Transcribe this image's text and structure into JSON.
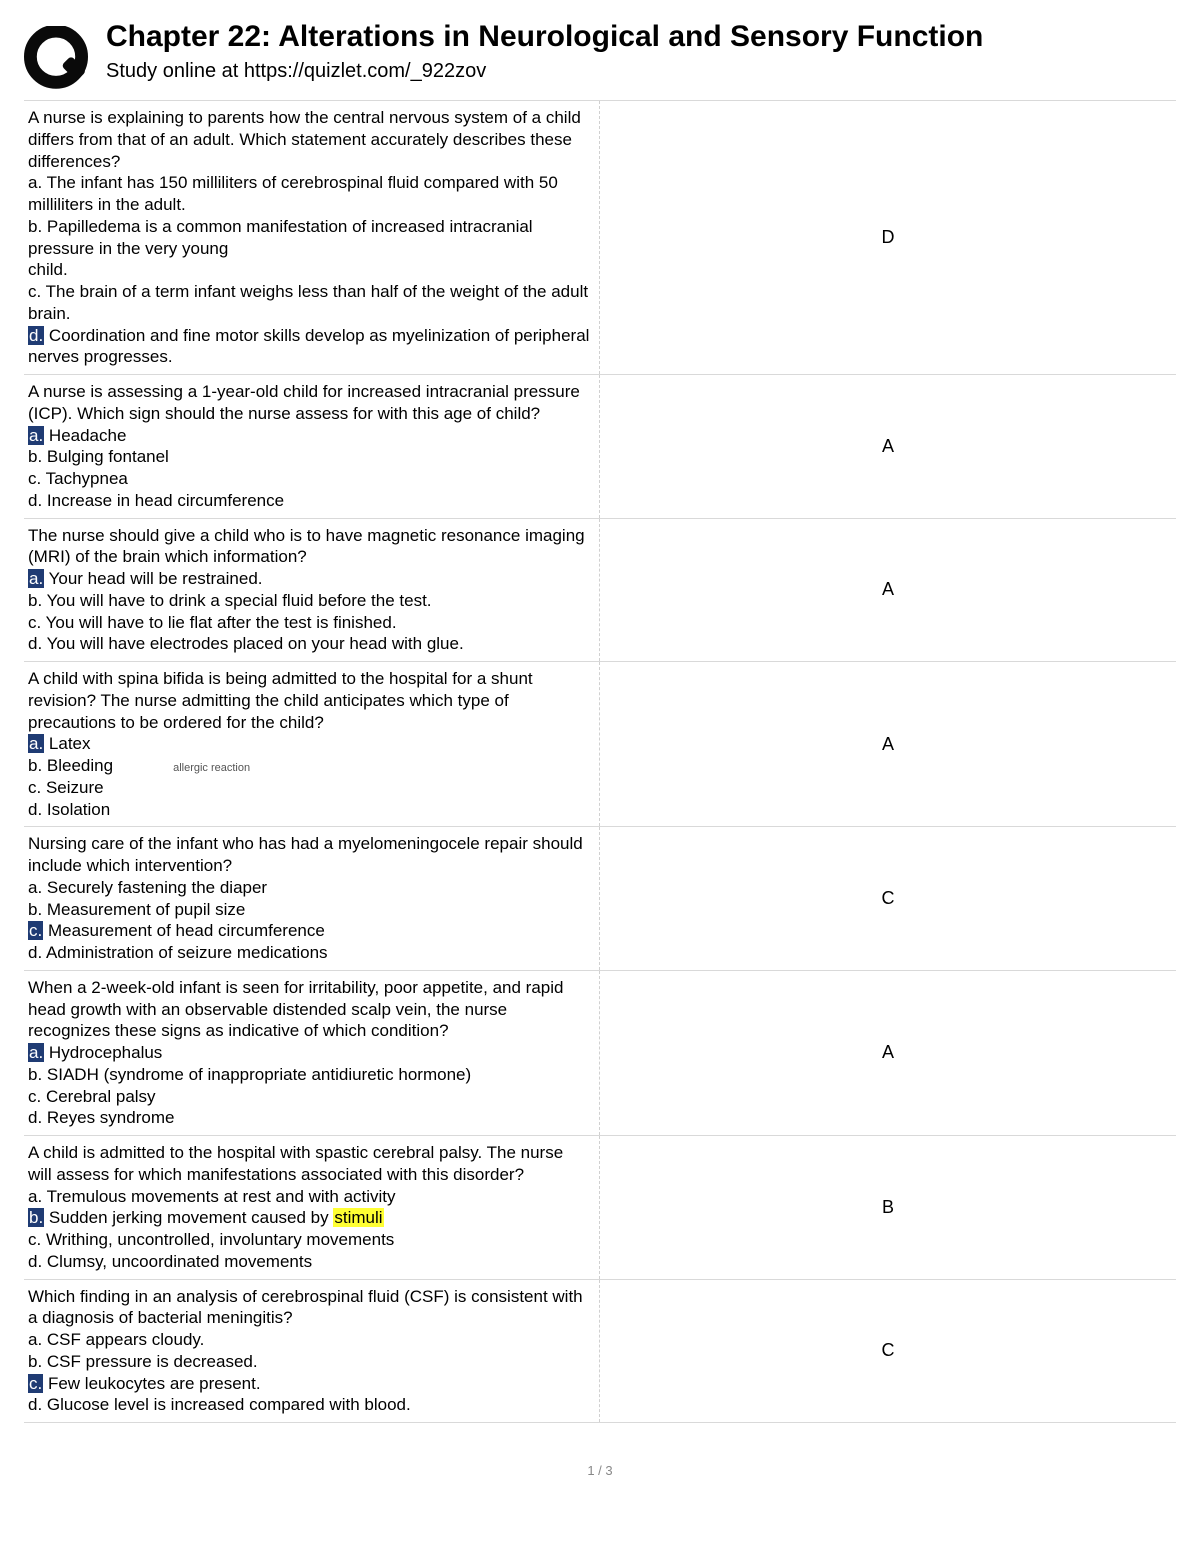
{
  "header": {
    "title": "Chapter 22: Alterations in Neurological and Sensory Function",
    "subtitle": "Study online at https://quizlet.com/_922zov"
  },
  "colors": {
    "highlight_blue_bg": "#1f3b73",
    "highlight_blue_fg": "#ffffff",
    "highlight_yellow_bg": "#ffff33",
    "row_border": "#d9d9d9",
    "column_divider": "#d0d0d0"
  },
  "rows": [
    {
      "answer": "D",
      "question": [
        {
          "t": "A nurse is explaining to parents how the central nervous system of a child differs from that of an adult. Which statement accurately describes these differences?"
        },
        {
          "t": "a. The infant has 150 milliliters of cerebrospinal fluid compared with 50 milliliters in the adult."
        },
        {
          "t": "b. Papilledema is a common manifestation of increased intracranial pressure in the very young"
        },
        {
          "t": "child."
        },
        {
          "t": "c. The brain of a term infant weighs less than half of the weight of the adult brain."
        },
        {
          "pre": "",
          "hl": "d.",
          "hlc": "blue",
          "post": " Coordination and fine motor skills develop as myelinization of peripheral nerves progresses."
        }
      ]
    },
    {
      "answer": "A",
      "question": [
        {
          "t": "A nurse is assessing a 1-year-old child for increased intracranial pressure (ICP). Which sign should the nurse assess for with this age of child?"
        },
        {
          "pre": "",
          "hl": "a.",
          "hlc": "blue",
          "post": " Headache"
        },
        {
          "t": "b. Bulging fontanel"
        },
        {
          "t": "c. Tachypnea"
        },
        {
          "t": "d. Increase in head circumference"
        }
      ]
    },
    {
      "answer": "A",
      "question": [
        {
          "t": "The nurse should give a child who is to have magnetic resonance imaging (MRI) of the brain which information?"
        },
        {
          "pre": "",
          "hl": "a.",
          "hlc": "blue",
          "post": " Your head will be restrained."
        },
        {
          "t": "b. You will have to drink a special fluid before the test."
        },
        {
          "t": "c. You will have to lie flat after the test is finished."
        },
        {
          "t": "d. You will have electrodes placed on your head with glue."
        }
      ]
    },
    {
      "answer": "A",
      "question": [
        {
          "t": " A child with spina bifida is being admitted to the hospital for a shunt revision? The nurse admitting the child anticipates which type of precautions to be ordered for the child?"
        },
        {
          "pre": " ",
          "hl": "a.",
          "hlc": "blue",
          "post": " Latex"
        },
        {
          "t": " b. Bleeding",
          "annot": "allergic reaction"
        },
        {
          "t": " c. Seizure"
        },
        {
          "t": " d. Isolation"
        }
      ]
    },
    {
      "answer": "C",
      "question": [
        {
          "t": "Nursing care of the infant who has had a myelomeningocele repair should include which intervention?"
        },
        {
          "t": "a. Securely fastening the diaper"
        },
        {
          "t": "b. Measurement of pupil size"
        },
        {
          "pre": "",
          "hl": "c.",
          "hlc": "blue",
          "post": " Measurement of head circumference"
        },
        {
          "t": "d. Administration of seizure medications"
        }
      ]
    },
    {
      "answer": "A",
      "question": [
        {
          "t": "When a 2-week-old infant is seen for irritability, poor appetite, and rapid head growth with an observable distended scalp vein, the nurse recognizes these signs as indicative of which condition?"
        },
        {
          "pre": "",
          "hl": "a.",
          "hlc": "blue",
          "post": " Hydrocephalus"
        },
        {
          "t": "b. SIADH (syndrome of inappropriate antidiuretic hormone)"
        },
        {
          "t": "c. Cerebral palsy"
        },
        {
          "t": "d. Reyes syndrome"
        }
      ]
    },
    {
      "answer": "B",
      "question": [
        {
          "t": "A child is admitted to the hospital with spastic cerebral palsy. The nurse will assess for which manifestations associated with this disorder?"
        },
        {
          "t": "a. Tremulous movements at rest and with activity"
        },
        {
          "pre": "",
          "hl": "b.",
          "hlc": "blue",
          "post": " Sudden jerking movement caused by ",
          "hl2": "stimuli",
          "hl2c": "yellow"
        },
        {
          "t": "c. Writhing, uncontrolled, involuntary movements"
        },
        {
          "t": "d. Clumsy, uncoordinated movements"
        }
      ]
    },
    {
      "answer": "C",
      "question": [
        {
          "t": "Which finding in an analysis of cerebrospinal fluid (CSF) is consistent with a diagnosis of bacterial meningitis?"
        },
        {
          "t": "a. CSF appears cloudy."
        },
        {
          "t": "b. CSF pressure is decreased."
        },
        {
          "pre": "",
          "hl": "c.",
          "hlc": "blue",
          "post": " Few leukocytes are present."
        },
        {
          "t": "d. Glucose level is increased compared with blood."
        }
      ]
    }
  ],
  "pagenum": "1 / 3"
}
